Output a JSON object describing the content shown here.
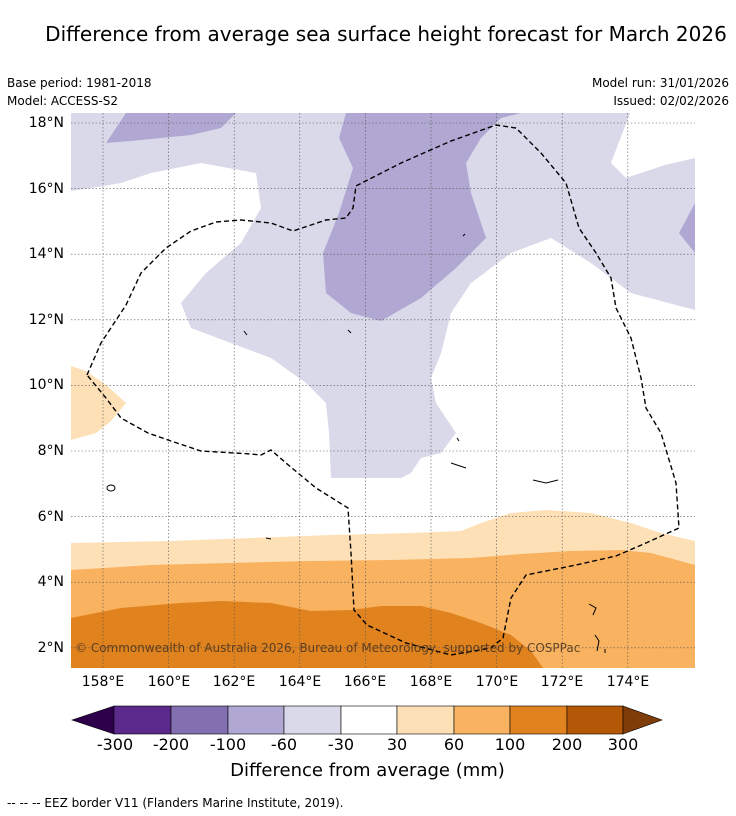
{
  "title": "Difference from average sea surface height forecast for March 2026",
  "meta": {
    "base_period": "Base period: 1981-2018",
    "model": "Model: ACCESS-S2",
    "model_run": "Model run: 31/01/2026",
    "issued": "Issued: 02/02/2026"
  },
  "map": {
    "lat_ticks": [
      "18°N",
      "16°N",
      "14°N",
      "12°N",
      "10°N",
      "8°N",
      "6°N",
      "4°N",
      "2°N"
    ],
    "lon_ticks": [
      "158°E",
      "160°E",
      "162°E",
      "164°E",
      "166°E",
      "168°E",
      "170°E",
      "172°E",
      "174°E"
    ],
    "copyright": "© Commonwealth of Australia 2026, Bureau of Meteorology, supported by COSPPac"
  },
  "legend": {
    "ticks": [
      "-300",
      "-200",
      "-100",
      "-60",
      "-30",
      "30",
      "60",
      "100",
      "200",
      "300"
    ],
    "colors": [
      "#2d004b",
      "#5b2a8c",
      "#8270b0",
      "#b0a8d3",
      "#d9d9ea",
      "#ffffff",
      "#fde0b6",
      "#f9b25f",
      "#e0821e",
      "#b35806",
      "#7f3b08"
    ],
    "title": "Difference from average (mm)"
  },
  "footnote": "--  --  -- EEZ border V11 (Flanders Marine Institute, 2019)."
}
